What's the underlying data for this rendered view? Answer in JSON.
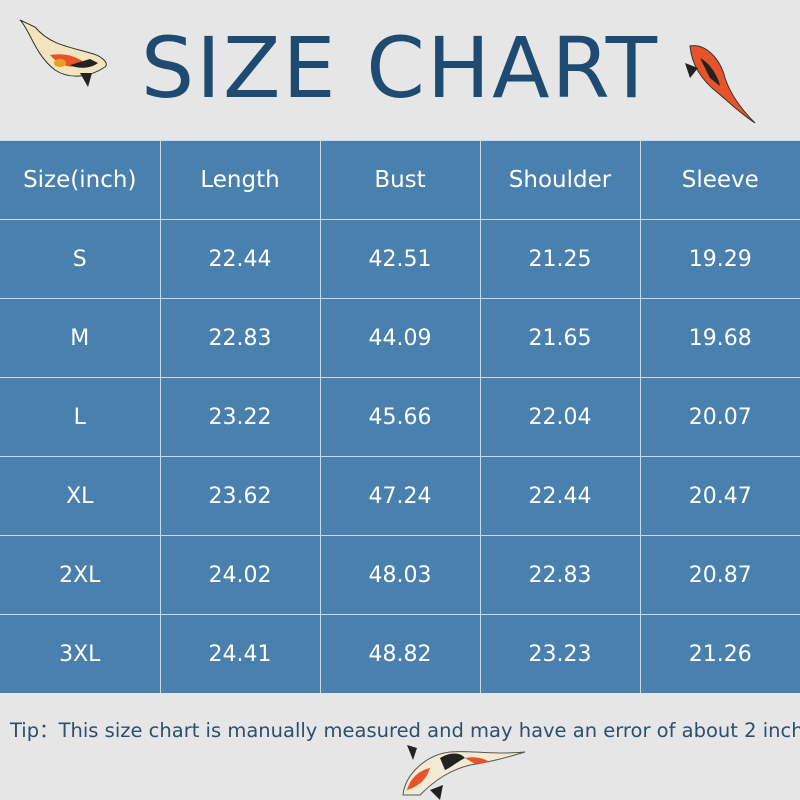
{
  "title": "SIZE CHART",
  "table": {
    "headers": [
      "Size(inch)",
      "Length",
      "Bust",
      "Shoulder",
      "Sleeve"
    ],
    "rows": [
      [
        "S",
        "22.44",
        "42.51",
        "21.25",
        "19.29"
      ],
      [
        "M",
        "22.83",
        "44.09",
        "21.65",
        "19.68"
      ],
      [
        "L",
        "23.22",
        "45.66",
        "22.04",
        "20.07"
      ],
      [
        "XL",
        "23.62",
        "47.24",
        "22.44",
        "20.47"
      ],
      [
        "2XL",
        "24.02",
        "48.03",
        "22.83",
        "20.87"
      ],
      [
        "3XL",
        "24.41",
        "48.82",
        "23.23",
        "21.26"
      ]
    ]
  },
  "tip": "Tip：This size chart is manually measured and may have an error of about 2 inch",
  "colors": {
    "title": "#1f4b72",
    "table_bg": "#4a80ad",
    "background": "#e6e6e6"
  },
  "icons": [
    "koi-fish-icon"
  ]
}
